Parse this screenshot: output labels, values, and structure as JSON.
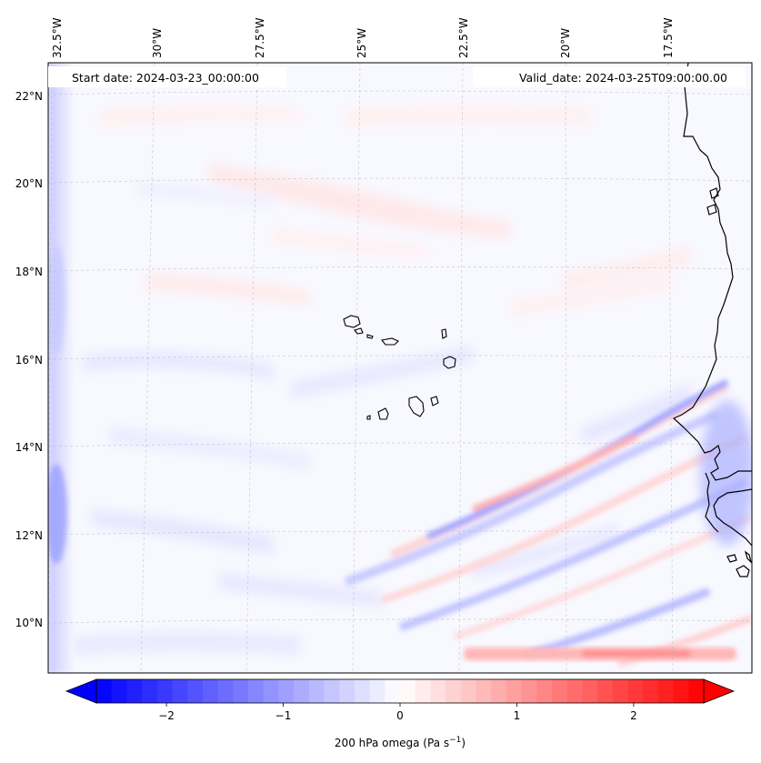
{
  "map": {
    "start_date_label": "Start date: 2024-03-23_00:00:00",
    "valid_date_label": "Valid_date: 2024-03-25T09:00:00.00",
    "lon_ticks": [
      "32.5°W",
      "30°W",
      "27.5°W",
      "25°W",
      "22.5°W",
      "20°W",
      "17.5°W"
    ],
    "lat_ticks": [
      "22°N",
      "20°N",
      "18°N",
      "16°N",
      "14°N",
      "12°N",
      "10°N"
    ],
    "features": [
      "Cape Verde islands",
      "West African coastline"
    ]
  },
  "colorbar": {
    "label_text": "200 hPa omega (Pa s",
    "label_superscript": "−1",
    "label_close": ")",
    "ticks": [
      "−2",
      "−1",
      "0",
      "1",
      "2"
    ],
    "tick_values": [
      -2,
      -1,
      0,
      1,
      2
    ],
    "min": -2.6,
    "max": 2.6,
    "colormap": "bwr",
    "extend": "both"
  },
  "colors": {
    "negative": "#0000ff",
    "neutral": "#ffffff",
    "positive": "#ff0000",
    "gridline": "#b0b0b0",
    "coastline": "#000000"
  }
}
